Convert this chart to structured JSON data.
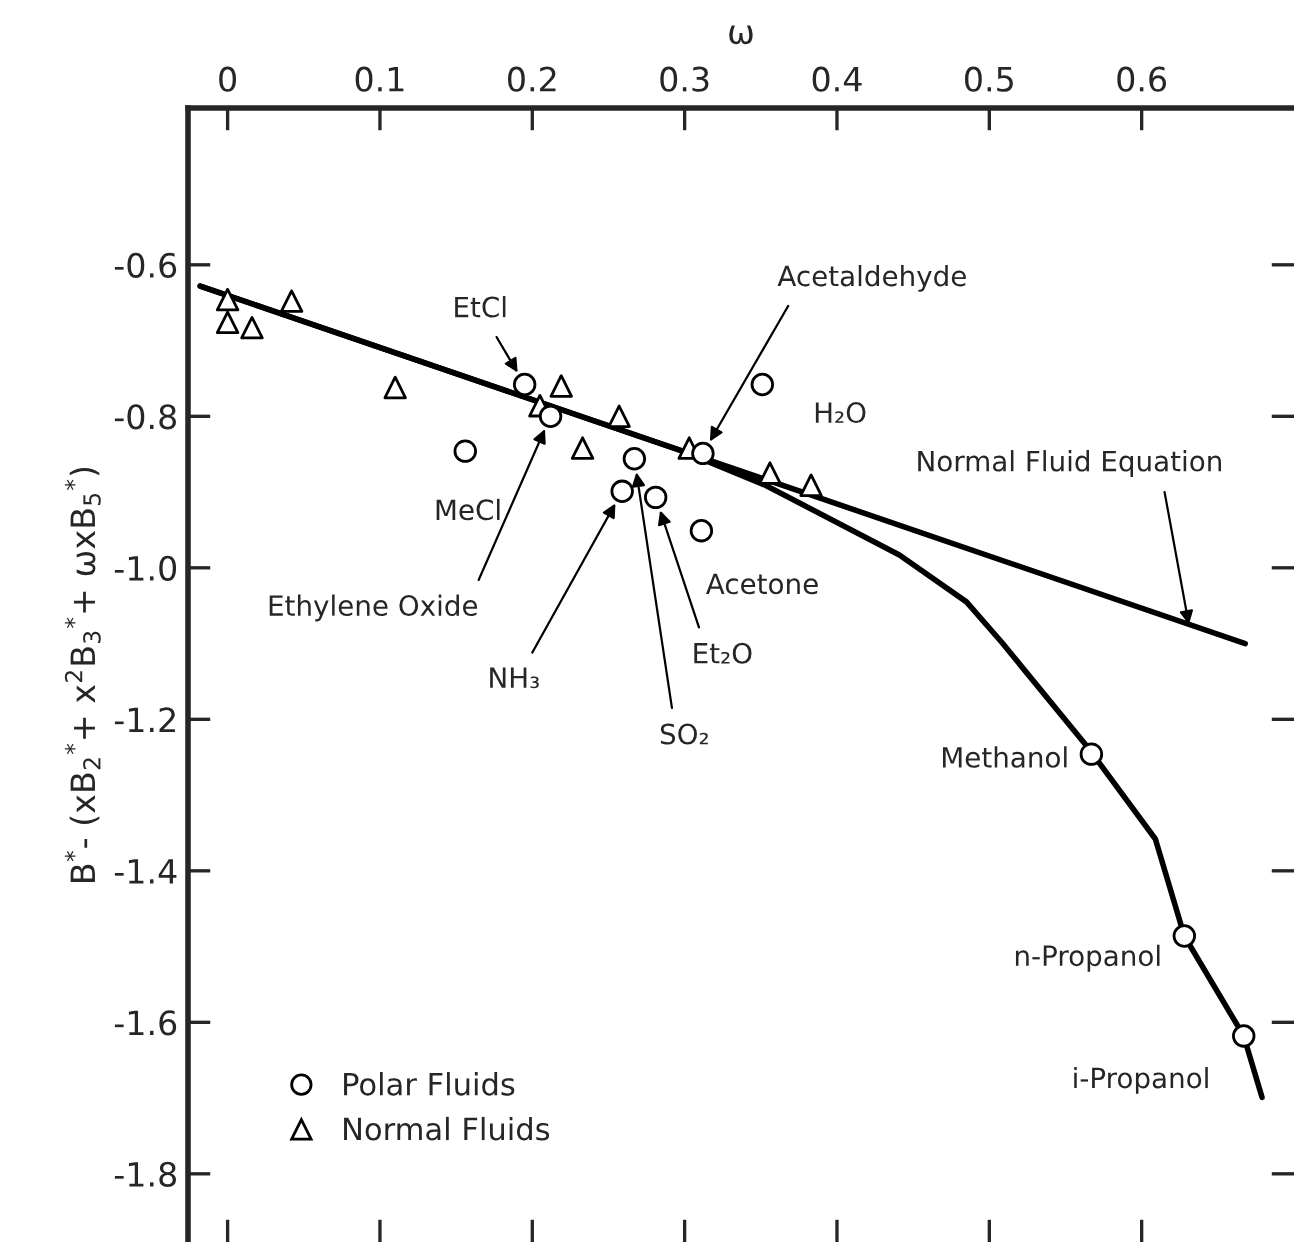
{
  "chart_data": {
    "type": "scatter",
    "xlabel": "ω",
    "ylabel": "B$^{*}$- (xB$_{2}$$^{*}$+ x$^{2}$B$_{3}$$^{*}$+ ωxB$_{5}$$^{*}$)",
    "xlim": [
      -0.026,
      0.7
    ],
    "xticks": [
      {
        "value": 0,
        "label": "0"
      },
      0.1,
      0.2,
      0.3,
      0.4,
      0.5,
      0.6
    ],
    "ylim": [
      -1.89,
      -0.393
    ],
    "yticks": [
      -0.6,
      -0.8,
      {
        "value": -1.0,
        "label": "-1.0"
      },
      -1.2,
      -1.4,
      -1.6,
      -1.8
    ],
    "grid": false,
    "legend": "bottom left",
    "series": [
      {
        "name": "Polar Fluids",
        "marker": "circle",
        "color": "#000000",
        "x": [
          0.195,
          0.212,
          0.156,
          0.259,
          0.267,
          0.281,
          0.311,
          0.312,
          0.351,
          0.567,
          0.628,
          0.667
        ],
        "values": [
          -0.758,
          -0.8,
          -0.846,
          -0.899,
          -0.856,
          -0.907,
          -0.951,
          -0.849,
          -0.758,
          -1.246,
          -1.486,
          -1.618
        ]
      },
      {
        "name": "Normal Fluids",
        "marker": "triangle",
        "color": "#000000",
        "x": [
          0.0,
          0.0,
          0.016,
          0.042,
          0.11,
          0.205,
          0.219,
          0.233,
          0.257,
          0.303,
          0.356,
          0.383
        ],
        "values": [
          -0.646,
          -0.676,
          -0.683,
          -0.648,
          -0.762,
          -0.786,
          -0.76,
          -0.842,
          -0.8,
          -0.842,
          -0.875,
          -0.891
        ]
      },
      {
        "type": "line",
        "color": "#000000",
        "x": [
          -0.018,
          0.668
        ],
        "values": [
          -0.628,
          -1.1
        ]
      },
      {
        "type": "line",
        "color": "#000000",
        "x": [
          -0.018,
          0.3,
          0.353,
          0.441,
          0.485,
          0.508,
          0.565,
          0.609,
          0.628,
          0.667,
          0.679
        ],
        "values": [
          -0.628,
          -0.847,
          -0.891,
          -0.983,
          -1.045,
          -1.098,
          -1.238,
          -1.358,
          -1.486,
          -1.618,
          -1.699
        ]
      }
    ],
    "annotations": [
      {
        "text": "EtCl",
        "x": 0.195,
        "y": -0.758
      },
      {
        "text": "Ethylene Oxide",
        "x": 0.212,
        "y": -0.8
      },
      {
        "text": "MeCl",
        "x": 0.156,
        "y": -0.846
      },
      {
        "text": "NH₃",
        "x": 0.259,
        "y": -0.899
      },
      {
        "text": "SO₂",
        "x": 0.267,
        "y": -0.856
      },
      {
        "text": "Et₂O",
        "x": 0.281,
        "y": -0.907
      },
      {
        "text": "Acetone",
        "x": 0.311,
        "y": -0.951
      },
      {
        "text": "Acetaldehyde",
        "x": 0.312,
        "y": -0.849
      },
      {
        "text": "H₂O",
        "x": 0.351,
        "y": -0.758
      },
      {
        "text": "Methanol",
        "x": 0.567,
        "y": -1.246
      },
      {
        "text": "n-Propanol",
        "x": 0.628,
        "y": -1.486
      },
      {
        "text": "i-Propanol",
        "x": 0.667,
        "y": -1.618
      },
      {
        "text": "Normal Fluid Equation",
        "x": 0.631,
        "y": -1.075
      }
    ]
  }
}
